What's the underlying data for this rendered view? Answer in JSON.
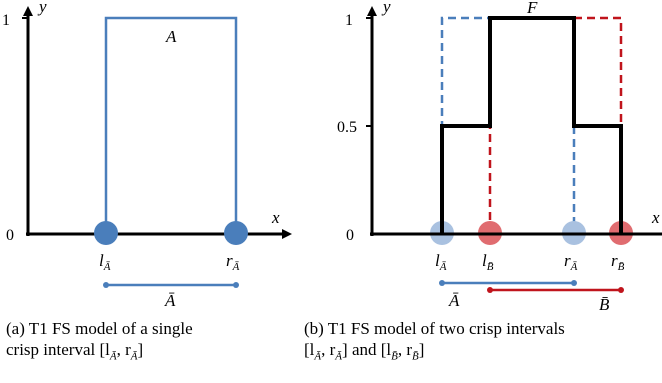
{
  "panel_a": {
    "y_label": "y",
    "x_label": "x",
    "y_ticks": [
      "1",
      "0"
    ],
    "set_label": "A",
    "left_point": "l",
    "right_point": "r",
    "point_sub": "Ā",
    "interval_label": "Ā",
    "caption_line1": "(a) T1 FS model of a single",
    "caption_line2": "crisp interval [l",
    "caption_sub1": "Ā",
    "caption_mid": ", r",
    "caption_sub2": "Ā",
    "caption_end": "]"
  },
  "panel_b": {
    "y_label": "y",
    "x_label": "x",
    "y_ticks": [
      "1",
      "0.5",
      "0"
    ],
    "set_label": "F",
    "points": [
      {
        "letter": "l",
        "sub": "Ā"
      },
      {
        "letter": "l",
        "sub": "B̄"
      },
      {
        "letter": "r",
        "sub": "Ā"
      },
      {
        "letter": "r",
        "sub": "B̄"
      }
    ],
    "interval_a_label": "Ā",
    "interval_b_label": "B̄",
    "caption_line1": "(b) T1 FS model of two crisp intervals",
    "caption_line2": "[l",
    "caption_sub1": "Ā",
    "caption_mid1": ", r",
    "caption_sub2": "Ā",
    "caption_mid2": "] and [l",
    "caption_sub3": "B̄",
    "caption_mid3": ", r",
    "caption_sub4": "B̄",
    "caption_end": "]"
  },
  "colors": {
    "blue": "#4a7ebb",
    "blue_light": "#a9c1e0",
    "red": "#c0141c",
    "red_light": "#e06c70",
    "axis": "#000000"
  }
}
